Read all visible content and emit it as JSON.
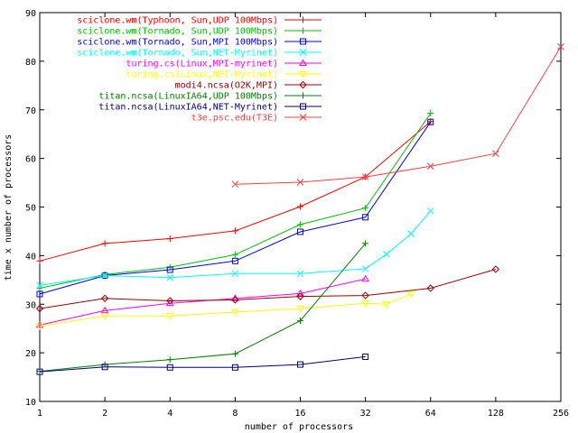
{
  "chart_data": {
    "type": "line",
    "xlabel": "number of processors",
    "ylabel": "time x number of processors",
    "x_scale": "log2",
    "xlim": [
      1,
      256
    ],
    "ylim": [
      10,
      90
    ],
    "x_ticks": [
      1,
      2,
      4,
      8,
      16,
      32,
      64,
      128,
      256
    ],
    "x_tick_labels": [
      "1",
      "2",
      "4",
      "8",
      "16",
      "32",
      "64",
      "128",
      "256"
    ],
    "y_ticks": [
      10,
      20,
      30,
      40,
      50,
      60,
      70,
      80,
      90
    ],
    "y_tick_labels": [
      "10",
      "20",
      "30",
      "40",
      "50",
      "60",
      "70",
      "80",
      "90"
    ],
    "grid": false,
    "legend_position": "top-left",
    "series": [
      {
        "name": "sciclone.wm(Typhoon, Sun,UDP 100Mbps)",
        "color": "#ff0000",
        "marker": "plus",
        "x": [
          1,
          2,
          4,
          8,
          16,
          32,
          64
        ],
        "y": [
          38.9,
          42.5,
          43.5,
          45.1,
          50.1,
          56.2,
          67.6
        ]
      },
      {
        "name": "sciclone.wm(Tornado, Sun,UDP 100Mbps)",
        "color": "#00c000",
        "marker": "cross",
        "x": [
          1,
          2,
          4,
          8,
          16,
          32,
          64
        ],
        "y": [
          33.3,
          36.1,
          37.6,
          40.2,
          46.4,
          49.8,
          69.3
        ]
      },
      {
        "name": "sciclone.wm(Tornado, Sun,MPI 100Mbps)",
        "color": "#0000ff",
        "marker": "square",
        "x": [
          1,
          2,
          4,
          8,
          16,
          32,
          64
        ],
        "y": [
          32.1,
          35.9,
          37.1,
          38.9,
          44.9,
          47.9,
          67.5
        ]
      },
      {
        "name": "sciclone.wm(Tornado, Sun,NET-Myrinet)",
        "color": "#00ffff",
        "marker": "x",
        "x": [
          1,
          2,
          4,
          8,
          16,
          32,
          40,
          52,
          64
        ],
        "y": [
          33.9,
          35.9,
          35.5,
          36.3,
          36.3,
          37.3,
          40.3,
          44.5,
          49.2
        ]
      },
      {
        "name": "turing.cs(Linux,MPI-myrinet)",
        "color": "#ff00ff",
        "marker": "triangle",
        "x": [
          1,
          2,
          4,
          8,
          16,
          32
        ],
        "y": [
          25.7,
          28.7,
          30.2,
          31.2,
          32.2,
          35.2
        ]
      },
      {
        "name": "turing.cs(Linux,NET-Myrinet)",
        "color": "#ffff00",
        "marker": "triangle-down",
        "x": [
          1,
          2,
          4,
          8,
          16,
          32,
          40,
          52
        ],
        "y": [
          25.5,
          27.6,
          27.6,
          28.4,
          29.1,
          30.2,
          30.0,
          32.1
        ]
      },
      {
        "name": "modi4.ncsa(O2K,MPI)",
        "color": "#a00000",
        "marker": "diamond",
        "x": [
          1,
          2,
          4,
          8,
          16,
          32,
          64,
          128
        ],
        "y": [
          29.1,
          31.2,
          30.7,
          30.9,
          31.6,
          31.8,
          33.3,
          37.2
        ]
      },
      {
        "name": "titan.ncsa(LinuxIA64,UDP 100Mbps)",
        "color": "#008000",
        "marker": "plus",
        "x": [
          1,
          2,
          4,
          8,
          16,
          32
        ],
        "y": [
          16.2,
          17.6,
          18.6,
          19.8,
          26.6,
          42.5
        ]
      },
      {
        "name": "titan.ncsa(LinuxIA64,NET-Myrinet)",
        "color": "#000080",
        "marker": "square",
        "x": [
          1,
          2,
          4,
          8,
          16,
          32
        ],
        "y": [
          16.1,
          17.1,
          17.0,
          17.0,
          17.6,
          19.2
        ]
      },
      {
        "name": "t3e.psc.edu(T3E)",
        "color": "#ff4040",
        "marker": "x",
        "x": [
          8,
          16,
          32,
          64,
          128,
          256
        ],
        "y": [
          54.7,
          55.1,
          56.2,
          58.4,
          61.0,
          83.0
        ]
      }
    ]
  }
}
